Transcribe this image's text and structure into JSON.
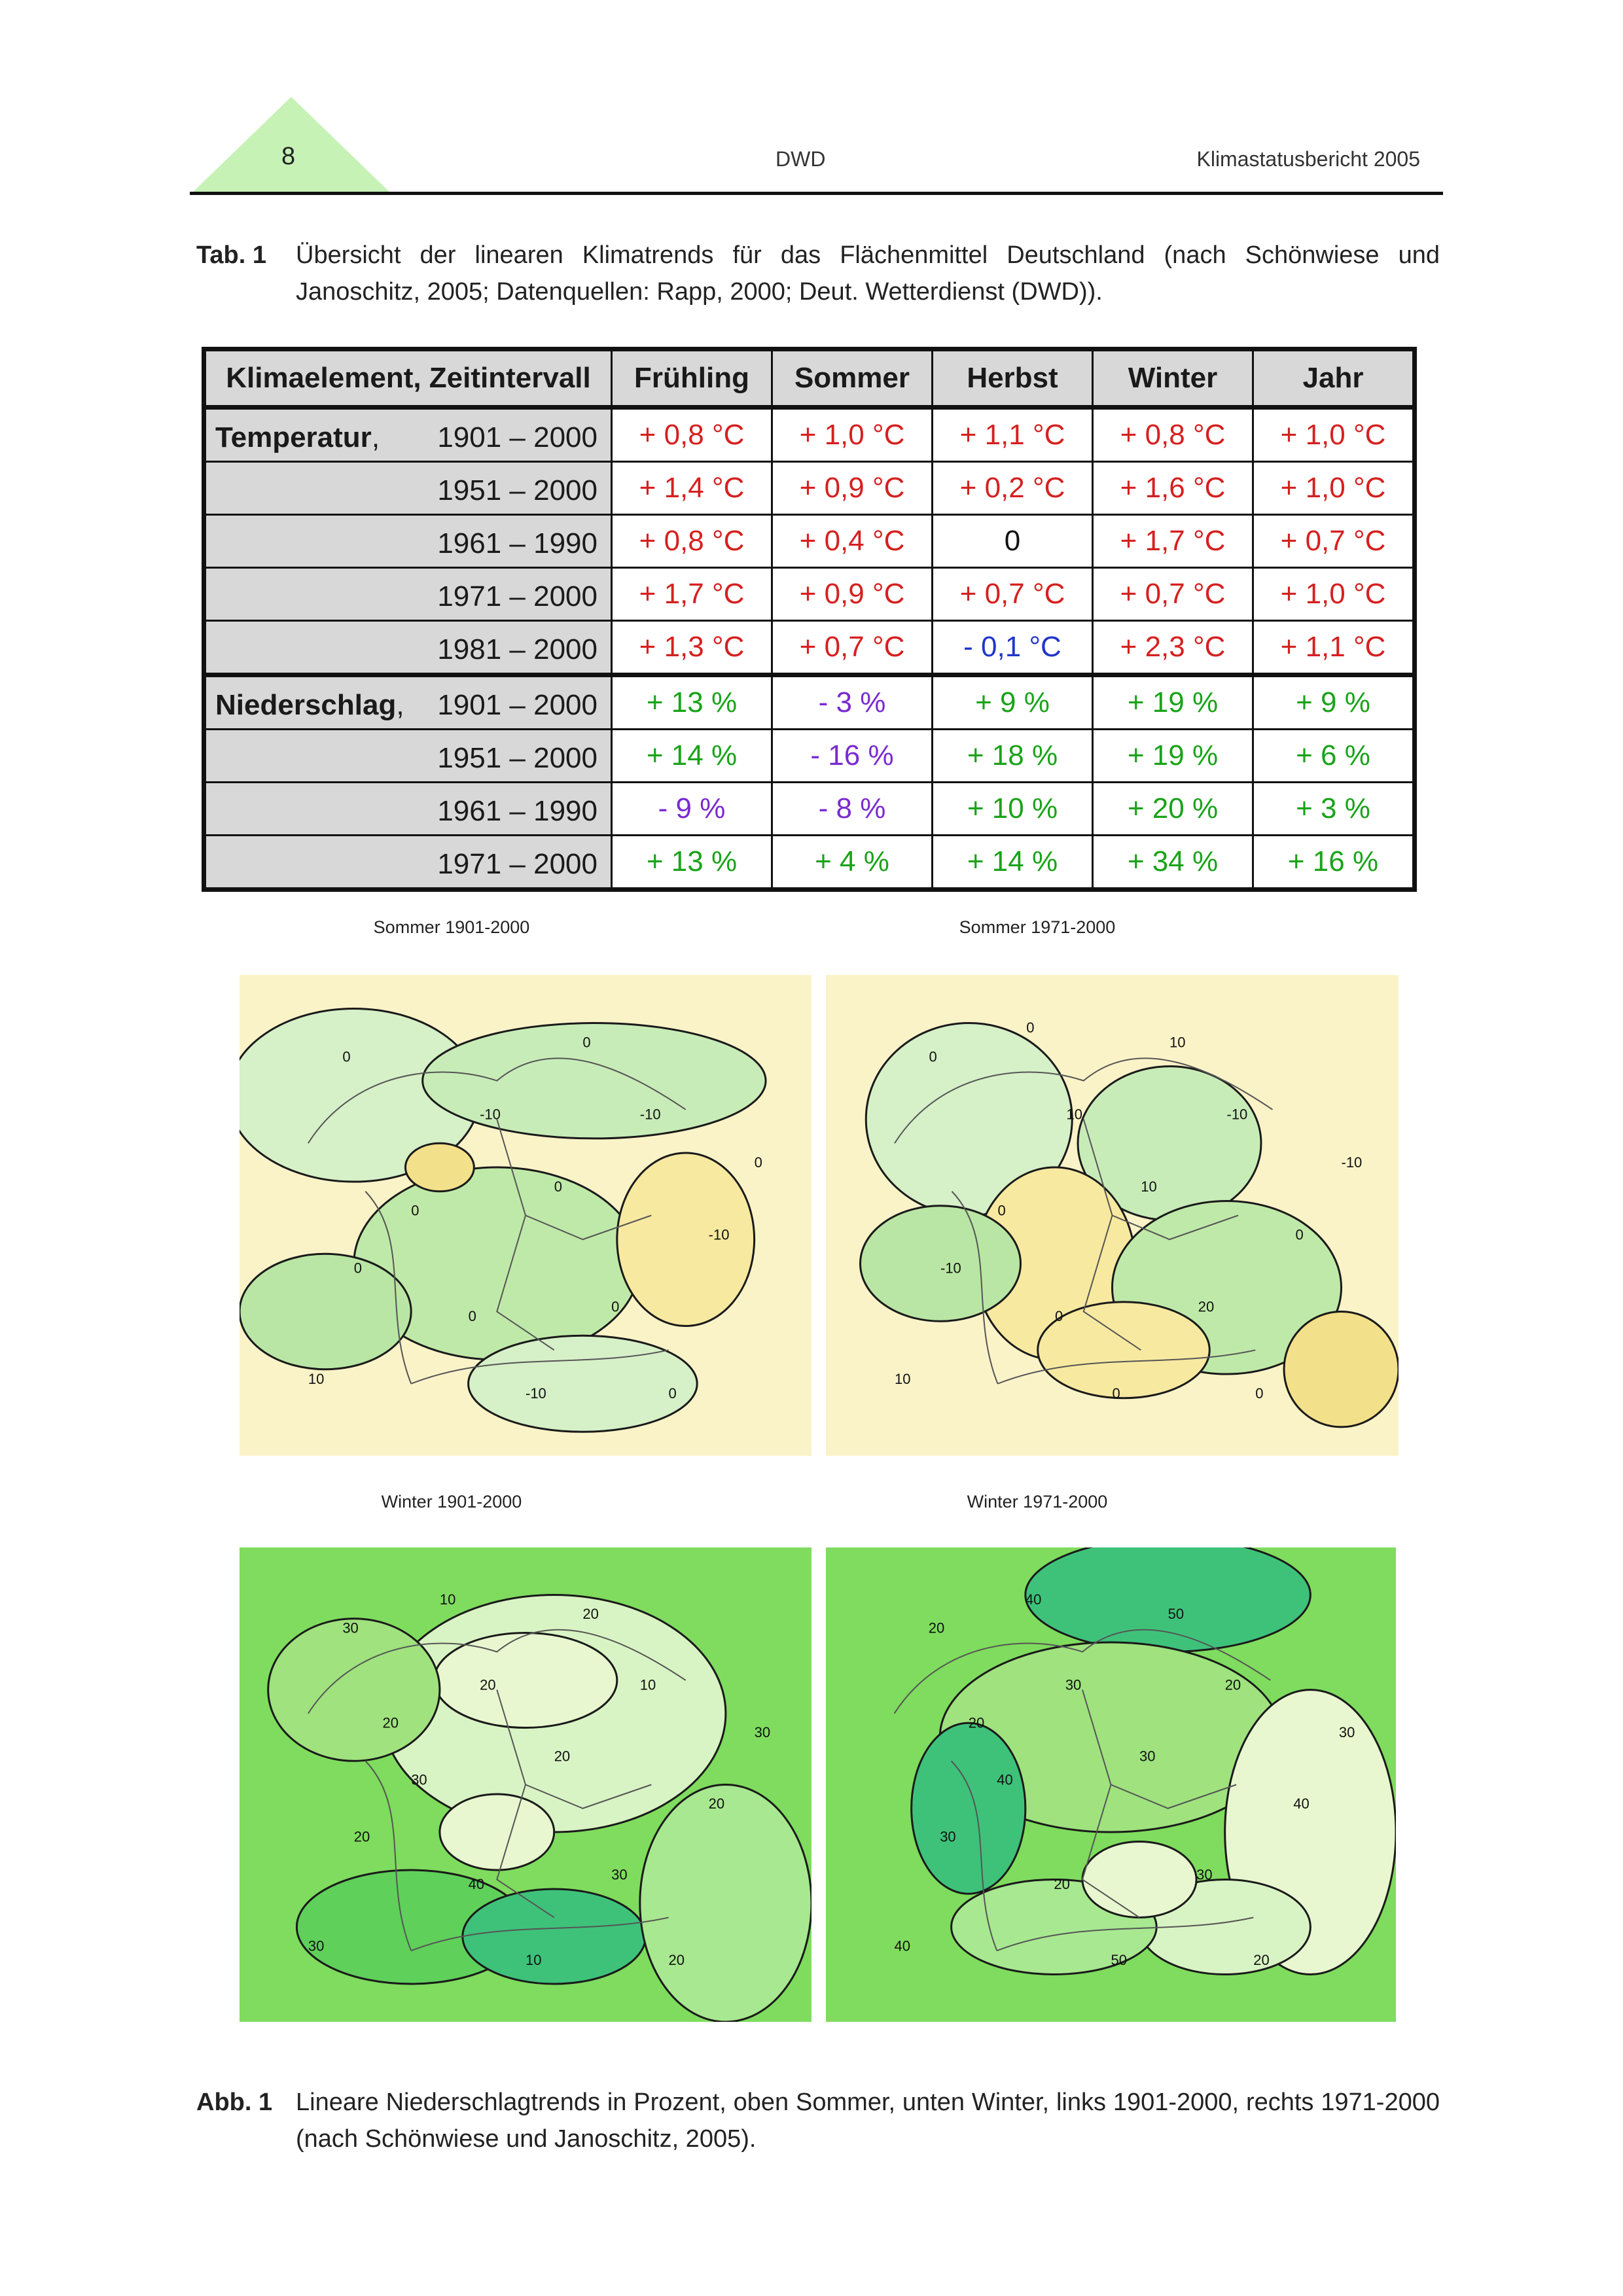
{
  "header": {
    "page_number": "8",
    "organization": "DWD",
    "report_title": "Klimastatusbericht 2005",
    "accent_color": "#c6f2b6"
  },
  "table_caption": {
    "label": "Tab. 1",
    "text": "Übersicht der linearen Klimatrends für das Flächenmittel Deutschland (nach Schönwiese und Janoschitz, 2005; Datenquellen: Rapp, 2000; Deut. Wetterdienst (DWD))."
  },
  "table": {
    "columns": [
      "Klimaelement, Zeitintervall",
      "Frühling",
      "Sommer",
      "Herbst",
      "Winter",
      "Jahr"
    ],
    "groups": [
      {
        "name": "Temperatur",
        "suffix": ",",
        "rows": [
          {
            "period": "1901 – 2000",
            "values": [
              "+ 0,8 °C",
              "+ 1,0 °C",
              "+ 1,1 °C",
              "+ 0,8 °C",
              "+ 1,0 °C"
            ],
            "colors": [
              "red",
              "red",
              "red",
              "red",
              "red"
            ]
          },
          {
            "period": "1951 – 2000",
            "values": [
              "+ 1,4 °C",
              "+ 0,9 °C",
              "+ 0,2 °C",
              "+ 1,6 °C",
              "+ 1,0 °C"
            ],
            "colors": [
              "red",
              "red",
              "red",
              "red",
              "red"
            ]
          },
          {
            "period": "1961 – 1990",
            "values": [
              "+ 0,8 °C",
              "+ 0,4 °C",
              "0",
              "+ 1,7 °C",
              "+ 0,7 °C"
            ],
            "colors": [
              "red",
              "red",
              "blk",
              "red",
              "red"
            ]
          },
          {
            "period": "1971 – 2000",
            "values": [
              "+ 1,7 °C",
              "+ 0,9 °C",
              "+ 0,7 °C",
              "+ 0,7 °C",
              "+ 1,0 °C"
            ],
            "colors": [
              "red",
              "red",
              "red",
              "red",
              "red"
            ]
          },
          {
            "period": "1981 – 2000",
            "values": [
              "+ 1,3 °C",
              "+ 0,7 °C",
              "- 0,1 °C",
              "+ 2,3 °C",
              "+ 1,1 °C"
            ],
            "colors": [
              "red",
              "red",
              "blu",
              "red",
              "red"
            ]
          }
        ]
      },
      {
        "name": "Niederschlag",
        "suffix": ",",
        "rows": [
          {
            "period": "1901 – 2000",
            "values": [
              "+ 13 %",
              "- 3 %",
              "+ 9 %",
              "+ 19 %",
              "+ 9 %"
            ],
            "colors": [
              "grn",
              "pur",
              "grn",
              "grn",
              "grn"
            ]
          },
          {
            "period": "1951 – 2000",
            "values": [
              "+ 14 %",
              "- 16 %",
              "+ 18 %",
              "+ 19 %",
              "+ 6 %"
            ],
            "colors": [
              "grn",
              "pur",
              "grn",
              "grn",
              "grn"
            ]
          },
          {
            "period": "1961 – 1990",
            "values": [
              "- 9 %",
              "- 8 %",
              "+ 10 %",
              "+ 20 %",
              "+ 3 %"
            ],
            "colors": [
              "pur",
              "pur",
              "grn",
              "grn",
              "grn"
            ]
          },
          {
            "period": "1971 – 2000",
            "values": [
              "+ 13 %",
              "+ 4 %",
              "+ 14 %",
              "+ 34 %",
              "+ 16 %"
            ],
            "colors": [
              "grn",
              "grn",
              "grn",
              "grn",
              "grn"
            ]
          }
        ]
      }
    ]
  },
  "maps": [
    {
      "title": "Sommer 1901-2000",
      "palette": "summer",
      "contour_labels": [
        "0",
        "-10",
        "0",
        "0",
        "-10",
        "-10",
        "0",
        "0",
        "0",
        "10",
        "-10",
        "0",
        "0",
        "0"
      ]
    },
    {
      "title": "Sommer 1971-2000",
      "palette": "summer",
      "contour_labels": [
        "0",
        "10",
        "0",
        "10",
        "-10",
        "0",
        "20",
        "0",
        "-10",
        "10",
        "0",
        "0",
        "-10",
        "10",
        "0"
      ]
    },
    {
      "title": "Winter 1901-2000",
      "palette": "winter",
      "contour_labels": [
        "30",
        "20",
        "30",
        "20",
        "10",
        "20",
        "30",
        "40",
        "20",
        "30",
        "10",
        "20",
        "30",
        "20",
        "10",
        "20"
      ]
    },
    {
      "title": "Winter 1971-2000",
      "palette": "winter",
      "contour_labels": [
        "20",
        "30",
        "40",
        "30",
        "20",
        "40",
        "30",
        "20",
        "30",
        "40",
        "50",
        "20",
        "30",
        "50",
        "40",
        "20"
      ]
    }
  ],
  "figure_caption": {
    "label": "Abb. 1",
    "text": "Lineare Niederschlagtrends in Prozent, oben Sommer, unten Winter, links 1901-2000, rechts 1971-2000 (nach Schönwiese und Janoschitz, 2005)."
  }
}
